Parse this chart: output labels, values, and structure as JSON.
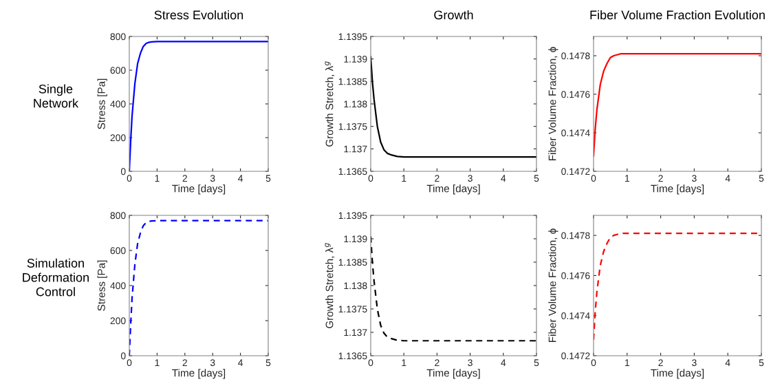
{
  "chart_data": [
    {
      "type": "line",
      "title": "Stress Evolution",
      "xlabel": "Time [days]",
      "ylabel": "Stress [Pa]",
      "annotations": [
        "Single Network"
      ],
      "x": [
        0,
        0.05,
        0.1,
        0.2,
        0.3,
        0.4,
        0.5,
        0.6,
        0.7,
        0.8,
        1,
        1.5,
        2,
        3,
        4,
        5
      ],
      "series": [
        {
          "color": "#0000ff",
          "values": [
            0,
            180,
            330,
            520,
            640,
            700,
            740,
            758,
            765,
            768,
            770,
            770,
            770,
            770,
            770,
            770
          ]
        }
      ],
      "xlim": [
        0,
        5
      ],
      "xticks": [
        0,
        1,
        2,
        3,
        4,
        5
      ],
      "ylim": [
        0,
        800
      ],
      "yticks": [
        0,
        200,
        400,
        600,
        800
      ],
      "line_style": "solid",
      "grid": false,
      "legend": false
    },
    {
      "type": "line",
      "title": "Growth",
      "xlabel": "Time [days]",
      "ylabel": "Growth Stretch, λ$^{g}$",
      "x": [
        0,
        0.05,
        0.1,
        0.2,
        0.3,
        0.4,
        0.5,
        0.6,
        0.8,
        1,
        2,
        3,
        4,
        5
      ],
      "series": [
        {
          "color": "#000000",
          "values": [
            1.13905,
            1.1385,
            1.1381,
            1.1375,
            1.13715,
            1.13698,
            1.1369,
            1.13687,
            1.13683,
            1.13682,
            1.13682,
            1.13682,
            1.13682,
            1.13682
          ]
        }
      ],
      "xlim": [
        0,
        5
      ],
      "xticks": [
        0,
        1,
        2,
        3,
        4,
        5
      ],
      "ylim": [
        1.1365,
        1.1395
      ],
      "yticks": [
        1.1365,
        1.137,
        1.1375,
        1.138,
        1.1385,
        1.139,
        1.1395
      ],
      "line_style": "solid",
      "grid": false,
      "legend": false
    },
    {
      "type": "line",
      "title": "Fiber Volume Fraction Evolution",
      "xlabel": "Time [days]",
      "ylabel": "Fiber Volume Fraction, ϕ",
      "x": [
        0,
        0.05,
        0.1,
        0.2,
        0.3,
        0.4,
        0.5,
        0.6,
        0.8,
        1,
        2,
        3,
        4,
        5
      ],
      "series": [
        {
          "color": "#ff0000",
          "values": [
            0.14728,
            0.14742,
            0.14752,
            0.14765,
            0.14772,
            0.14776,
            0.14779,
            0.1478,
            0.14781,
            0.14781,
            0.14781,
            0.14781,
            0.14781,
            0.14781
          ]
        }
      ],
      "xlim": [
        0,
        5
      ],
      "xticks": [
        0,
        1,
        2,
        3,
        4,
        5
      ],
      "ylim": [
        0.1472,
        0.1479
      ],
      "yticks": [
        0.1472,
        0.1474,
        0.1476,
        0.1478
      ],
      "line_style": "solid",
      "grid": false,
      "legend": false
    },
    {
      "type": "line",
      "xlabel": "Time [days]",
      "ylabel": "Stress [Pa]",
      "annotations": [
        "Simulation Deformation Control"
      ],
      "x": [
        0,
        0.05,
        0.1,
        0.2,
        0.3,
        0.4,
        0.5,
        0.6,
        0.7,
        0.8,
        1,
        1.5,
        2,
        3,
        4,
        5
      ],
      "series": [
        {
          "color": "#0000ff",
          "values": [
            0,
            180,
            330,
            520,
            640,
            700,
            740,
            758,
            765,
            768,
            770,
            770,
            770,
            770,
            770,
            770
          ]
        }
      ],
      "xlim": [
        0,
        5
      ],
      "xticks": [
        0,
        1,
        2,
        3,
        4,
        5
      ],
      "ylim": [
        0,
        800
      ],
      "yticks": [
        0,
        200,
        400,
        600,
        800
      ],
      "line_style": "dashed",
      "grid": false,
      "legend": false
    },
    {
      "type": "line",
      "xlabel": "Time [days]",
      "ylabel": "Growth Stretch, λ$^{g}$",
      "x": [
        0,
        0.05,
        0.1,
        0.2,
        0.3,
        0.4,
        0.5,
        0.6,
        0.8,
        1,
        2,
        3,
        4,
        5
      ],
      "series": [
        {
          "color": "#000000",
          "values": [
            1.13905,
            1.1385,
            1.1381,
            1.1375,
            1.13715,
            1.13698,
            1.1369,
            1.13687,
            1.13683,
            1.13682,
            1.13682,
            1.13682,
            1.13682,
            1.13682
          ]
        }
      ],
      "xlim": [
        0,
        5
      ],
      "xticks": [
        0,
        1,
        2,
        3,
        4,
        5
      ],
      "ylim": [
        1.1365,
        1.1395
      ],
      "yticks": [
        1.1365,
        1.137,
        1.1375,
        1.138,
        1.1385,
        1.139,
        1.1395
      ],
      "line_style": "dashed",
      "grid": false,
      "legend": false
    },
    {
      "type": "line",
      "xlabel": "Time [days]",
      "ylabel": "Fiber Volume Fraction, ϕ",
      "x": [
        0,
        0.05,
        0.1,
        0.2,
        0.3,
        0.4,
        0.5,
        0.6,
        0.8,
        1,
        2,
        3,
        4,
        5
      ],
      "series": [
        {
          "color": "#ff0000",
          "values": [
            0.14728,
            0.14742,
            0.14752,
            0.14765,
            0.14772,
            0.14776,
            0.14779,
            0.1478,
            0.14781,
            0.14781,
            0.14781,
            0.14781,
            0.14781,
            0.14781
          ]
        }
      ],
      "xlim": [
        0,
        5
      ],
      "xticks": [
        0,
        1,
        2,
        3,
        4,
        5
      ],
      "ylim": [
        0.1472,
        0.1479
      ],
      "yticks": [
        0.1472,
        0.1474,
        0.1476,
        0.1478
      ],
      "line_style": "dashed",
      "grid": false,
      "legend": false
    }
  ]
}
